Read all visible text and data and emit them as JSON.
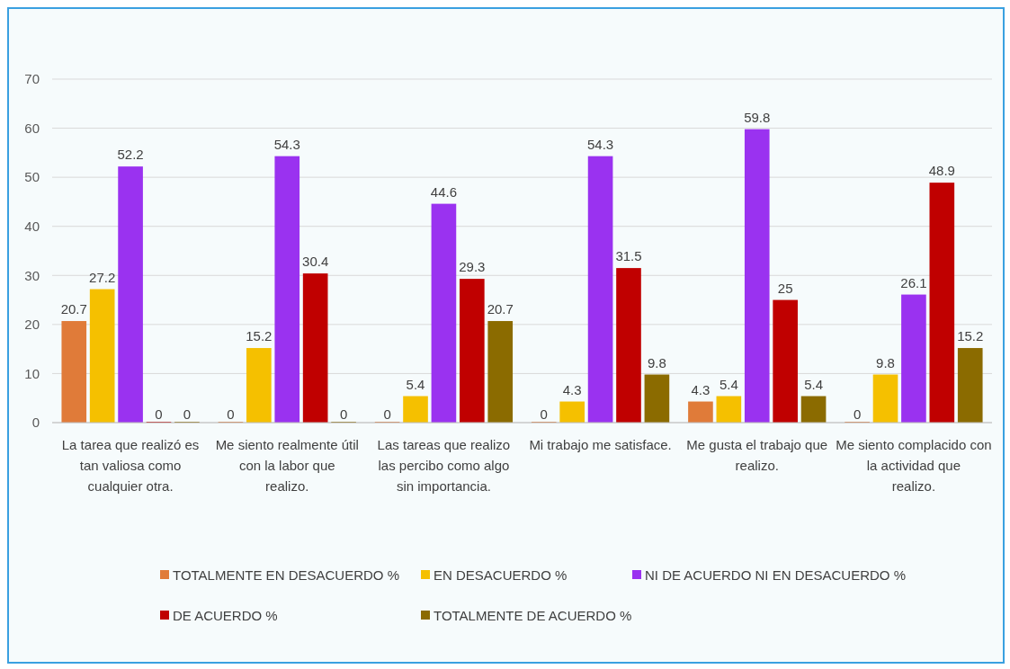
{
  "chart_data": {
    "type": "bar",
    "categories": [
      "La tarea que realizó es tan valiosa como cualquier otra.",
      "Me siento realmente útil con la labor que realizo.",
      "Las tareas que realizo las percibo como algo sin importancia.",
      "Mi trabajo me satisface.",
      "Me gusta el trabajo que realizo.",
      "Me siento complacido con la actividad que realizo."
    ],
    "series": [
      {
        "name": "TOTALMENTE EN DESACUERDO %",
        "color": "#e07b39",
        "values": [
          20.7,
          0,
          0,
          0,
          4.3,
          0
        ]
      },
      {
        "name": "EN DESACUERDO %",
        "color": "#f5c000",
        "values": [
          27.2,
          15.2,
          5.4,
          4.3,
          5.4,
          9.8
        ]
      },
      {
        "name": "NI DE ACUERDO NI EN DESACUERDO %",
        "color": "#9a32f0",
        "values": [
          52.2,
          54.3,
          44.6,
          54.3,
          59.8,
          26.1
        ]
      },
      {
        "name": "DE ACUERDO %",
        "color": "#c00000",
        "values": [
          0,
          30.4,
          29.3,
          31.5,
          25,
          48.9
        ]
      },
      {
        "name": "TOTALMENTE DE ACUERDO %",
        "color": "#8b6b00",
        "values": [
          0,
          0,
          20.7,
          9.8,
          5.4,
          15.2
        ]
      }
    ],
    "ylim": [
      0,
      70
    ],
    "yticks": [
      0,
      10,
      20,
      30,
      40,
      50,
      60,
      70
    ],
    "grid": "y",
    "data_labels": true,
    "legend": "bottom"
  }
}
